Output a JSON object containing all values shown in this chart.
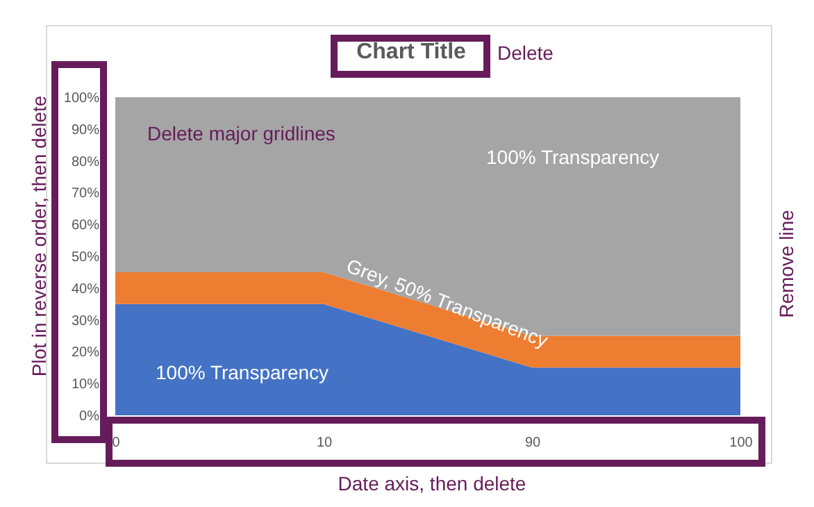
{
  "chart_data": {
    "type": "area",
    "title": "Chart Title",
    "stacked": true,
    "legend": false,
    "grid": false,
    "categories": [
      "0",
      "10",
      "90",
      "100"
    ],
    "series": [
      {
        "color": "#4472c4",
        "values": [
          35,
          35,
          15,
          15
        ]
      },
      {
        "color": "#ed7d31",
        "values": [
          10,
          10,
          10,
          10
        ]
      },
      {
        "color": "#a5a5a5",
        "values": [
          55,
          55,
          75,
          75
        ]
      }
    ],
    "ylim": [
      0,
      100
    ],
    "yticks": [
      {
        "value": 0,
        "label": "0%"
      },
      {
        "value": 10,
        "label": "10%"
      },
      {
        "value": 20,
        "label": "20%"
      },
      {
        "value": 30,
        "label": "30%"
      },
      {
        "value": 40,
        "label": "40%"
      },
      {
        "value": 50,
        "label": "50%"
      },
      {
        "value": 60,
        "label": "60%"
      },
      {
        "value": 70,
        "label": "70%"
      },
      {
        "value": 80,
        "label": "80%"
      },
      {
        "value": 90,
        "label": "90%"
      },
      {
        "value": 100,
        "label": "100%"
      }
    ],
    "annotations": [
      "Delete",
      "Delete major gridlines",
      "100% Transparency",
      "Grey, 50% Transparency",
      "100% Transparency",
      "Plot in reverse order, then delete",
      "Remove line",
      "Date axis, then delete"
    ]
  }
}
